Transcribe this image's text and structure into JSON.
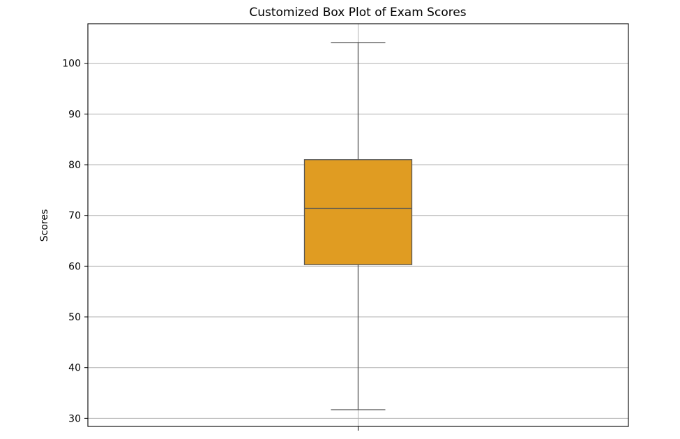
{
  "chart_data": {
    "type": "box",
    "title": "Customized Box Plot of Exam Scores",
    "xlabel": "",
    "ylabel": "Scores",
    "ylim": [
      28.4,
      107.8
    ],
    "yticks": [
      30,
      40,
      50,
      60,
      70,
      80,
      90,
      100
    ],
    "grid": true,
    "box": {
      "whisker_low": 31.7,
      "q1": 60.3,
      "median": 71.4,
      "q3": 81.0,
      "whisker_high": 104.1
    },
    "colors": {
      "box_fill": "#e09c22",
      "box_edge": "#555555",
      "grid": "#b0b0b0",
      "axes": "#000000"
    }
  }
}
